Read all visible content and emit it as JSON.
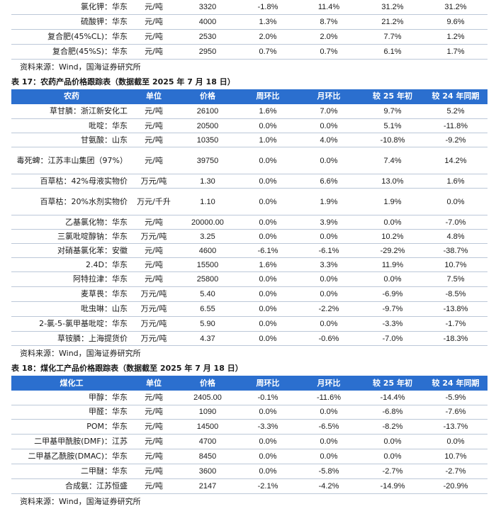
{
  "table_top": {
    "rows": [
      [
        "氯化钾：华东",
        "元/吨",
        "3320",
        "-1.8%",
        "11.4%",
        "31.2%",
        "31.2%"
      ],
      [
        "硫酸钾：华东",
        "元/吨",
        "4000",
        "1.3%",
        "8.7%",
        "21.2%",
        "9.6%"
      ],
      [
        "复合肥(45%CL)：华东",
        "元/吨",
        "2530",
        "2.0%",
        "2.0%",
        "7.7%",
        "1.2%"
      ],
      [
        "复合肥(45%S)：华东",
        "元/吨",
        "2950",
        "0.7%",
        "0.7%",
        "6.1%",
        "1.7%"
      ]
    ],
    "source": "资料来源：Wind，国海证券研究所"
  },
  "table17": {
    "caption": "表 17：农药产品价格跟踪表（数据截至 2025 年 7 月 18 日）",
    "headers": [
      "农药",
      "单位",
      "价格",
      "周环比",
      "月环比",
      "较 25 年初",
      "较 24 年同期"
    ],
    "rows": [
      [
        "草甘膦：浙江新安化工",
        "元/吨",
        "26100",
        "1.6%",
        "7.0%",
        "9.7%",
        "5.2%"
      ],
      [
        "吡啶：华东",
        "元/吨",
        "20500",
        "0.0%",
        "0.0%",
        "5.1%",
        "-11.8%"
      ],
      [
        "甘氨酸：山东",
        "元/吨",
        "10350",
        "1.0%",
        "4.0%",
        "-10.8%",
        "-9.2%"
      ],
      [
        "毒死蜱：江苏丰山集团（97%）",
        "元/吨",
        "39750",
        "0.0%",
        "0.0%",
        "7.4%",
        "14.2%"
      ],
      [
        "百草枯：42%母液实物价",
        "万元/吨",
        "1.30",
        "0.0%",
        "6.6%",
        "13.0%",
        "1.6%"
      ],
      [
        "百草枯：20%水剂实物价",
        "万元/千升",
        "1.10",
        "0.0%",
        "1.9%",
        "1.9%",
        "0.0%"
      ],
      [
        "乙基氯化物：华东",
        "元/吨",
        "20000.00",
        "0.0%",
        "3.9%",
        "0.0%",
        "-7.0%"
      ],
      [
        "三氯吡啶醇钠：华东",
        "万元/吨",
        "3.25",
        "0.0%",
        "0.0%",
        "10.2%",
        "4.8%"
      ],
      [
        "对硝基氯化苯：安徽",
        "元/吨",
        "4600",
        "-6.1%",
        "-6.1%",
        "-29.2%",
        "-38.7%"
      ],
      [
        "2.4D：华东",
        "元/吨",
        "15500",
        "1.6%",
        "3.3%",
        "11.9%",
        "10.7%"
      ],
      [
        "阿特拉津：华东",
        "元/吨",
        "25800",
        "0.0%",
        "0.0%",
        "0.0%",
        "7.5%"
      ],
      [
        "麦草畏：华东",
        "万元/吨",
        "5.40",
        "0.0%",
        "0.0%",
        "-6.9%",
        "-8.5%"
      ],
      [
        "吡虫啉：山东",
        "万元/吨",
        "6.55",
        "0.0%",
        "-2.2%",
        "-9.7%",
        "-13.8%"
      ],
      [
        "2-氯-5-氯甲基吡啶：华东",
        "万元/吨",
        "5.90",
        "0.0%",
        "0.0%",
        "-3.3%",
        "-1.7%"
      ],
      [
        "草铵膦：上海提货价",
        "万元/吨",
        "4.37",
        "0.0%",
        "-0.6%",
        "-7.0%",
        "-18.3%"
      ]
    ],
    "source": "资料来源：Wind，国海证券研究所"
  },
  "table18": {
    "caption": "表 18：煤化工产品价格跟踪表（数据截至 2025 年 7 月 18 日）",
    "headers": [
      "煤化工",
      "单位",
      "价格",
      "周环比",
      "月环比",
      "较 25 年初",
      "较 24 年同期"
    ],
    "rows": [
      [
        "甲醇：华东",
        "元/吨",
        "2405.00",
        "-0.1%",
        "-11.6%",
        "-14.4%",
        "-5.9%"
      ],
      [
        "甲醛：华东",
        "元/吨",
        "1090",
        "0.0%",
        "0.0%",
        "-6.8%",
        "-7.6%"
      ],
      [
        "POM：华东",
        "元/吨",
        "14500",
        "-3.3%",
        "-6.5%",
        "-8.2%",
        "-13.7%"
      ],
      [
        "二甲基甲酰胺(DMF)：江苏",
        "元/吨",
        "4700",
        "0.0%",
        "0.0%",
        "0.0%",
        "0.0%"
      ],
      [
        "二甲基乙酰胺(DMAC)：华东",
        "元/吨",
        "8450",
        "0.0%",
        "0.0%",
        "0.0%",
        "10.7%"
      ],
      [
        "二甲醚：华东",
        "元/吨",
        "3600",
        "0.0%",
        "-5.8%",
        "-2.7%",
        "-2.7%"
      ],
      [
        "合成氨：江苏恒盛",
        "元/吨",
        "2147",
        "-2.1%",
        "-4.2%",
        "-14.9%",
        "-20.9%"
      ]
    ],
    "source": "资料来源：Wind，国海证券研究所"
  },
  "colors": {
    "header_bg": "#2b6fcf",
    "row_border": "#bcc8d8"
  }
}
